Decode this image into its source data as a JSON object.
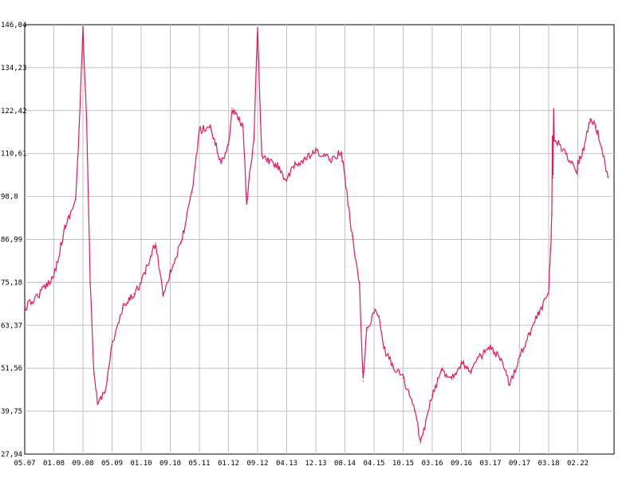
{
  "chart_data": {
    "type": "line",
    "title": "",
    "xlabel": "",
    "ylabel": "",
    "ylim": [
      27.94,
      146.04
    ],
    "y_ticks": [
      "146,04",
      "134,23",
      "122,42",
      "110,61",
      "98,8",
      "86,99",
      "75,18",
      "63,37",
      "51,56",
      "39,75",
      "27,94"
    ],
    "x_ticks": [
      "05.07",
      "01.08",
      "09.08",
      "05.09",
      "01.10",
      "09.10",
      "05.11",
      "01.12",
      "09.12",
      "04.13",
      "12.13",
      "08.14",
      "04.15",
      "10.15",
      "03.16",
      "09.16",
      "03.17",
      "09.17",
      "03.18",
      "02.22"
    ],
    "grid": true,
    "series": [
      {
        "color": "#e8175d",
        "x": [
          "05.07",
          "09.07",
          "01.08",
          "04.08",
          "07.08",
          "08.08",
          "09.08",
          "10.08",
          "11.08",
          "12.08",
          "01.09",
          "03.09",
          "05.09",
          "08.09",
          "11.09",
          "01.10",
          "05.10",
          "07.10",
          "09.10",
          "12.10",
          "03.11",
          "05.11",
          "08.11",
          "11.11",
          "01.12",
          "02.12",
          "05.12",
          "06.12",
          "08.12",
          "09.12",
          "10.12",
          "11.12",
          "02.13",
          "04.13",
          "06.13",
          "09.13",
          "12.13",
          "04.14",
          "07.14",
          "08.14",
          "10.14",
          "12.14",
          "01.15",
          "02.15",
          "04.15",
          "05.15",
          "06.15",
          "08.15",
          "10.15",
          "12.15",
          "01.16",
          "03.16",
          "05.16",
          "07.16",
          "09.16",
          "11.16",
          "01.17",
          "03.17",
          "05.17",
          "07.17",
          "09.17",
          "11.17",
          "01.18",
          "03.18",
          "04.18",
          "05.18",
          "06.18",
          "07.18",
          "08.18",
          "09.18",
          "10.18",
          "11.18",
          "12.18",
          "01.22",
          "02.22",
          "03.22",
          "04.22",
          "05.22",
          "06.22",
          "07.22"
        ],
        "values": [
          68,
          72,
          77,
          90,
          98,
          118,
          145,
          120,
          75,
          50,
          42,
          45,
          58,
          68,
          72,
          75,
          86,
          72,
          78,
          86,
          100,
          117,
          118,
          108,
          113,
          123,
          118,
          97,
          115,
          145,
          110,
          109,
          107,
          103,
          107,
          109,
          111,
          109,
          111,
          104,
          88,
          75,
          48,
          62,
          67,
          66,
          57,
          52,
          49,
          40,
          31,
          44,
          51,
          49,
          53,
          51,
          55,
          57,
          54,
          47,
          55,
          61,
          67,
          72,
          78,
          80,
          84,
          88,
          94,
          115,
          104,
          122,
          115,
          106,
          108,
          112,
          120,
          118,
          112,
          104
        ]
      }
    ]
  }
}
